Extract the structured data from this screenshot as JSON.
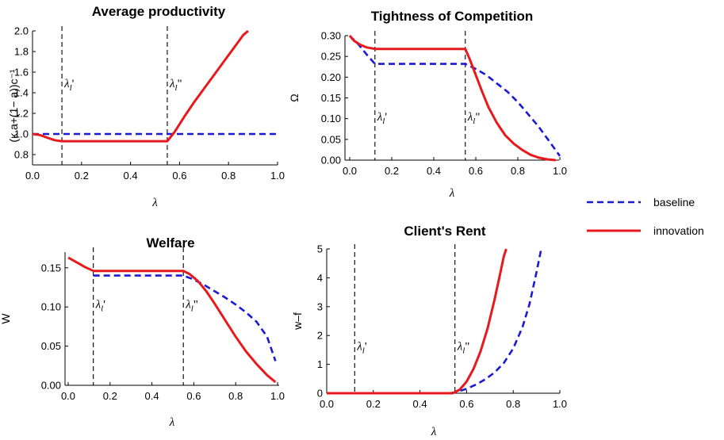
{
  "legend": {
    "position": "right",
    "entries": [
      {
        "label": "baseline",
        "color": "#1a1ad6",
        "dash": true
      },
      {
        "label": "innovation",
        "color": "#e8191c",
        "dash": false
      }
    ]
  },
  "chart_data": [
    {
      "type": "line",
      "title": "Average productivity",
      "xlabel": "λ",
      "ylabel": "(κ a+(1− a))c⁻¹",
      "xlim": [
        0,
        1
      ],
      "ylim": [
        0.7,
        2.0
      ],
      "xticks": [
        "0.0",
        "0.2",
        "0.4",
        "0.6",
        "0.8",
        "1.0"
      ],
      "yticks": [
        "0.8",
        "1.0",
        "1.2",
        "1.4",
        "1.6",
        "1.8",
        "2.0"
      ],
      "vlines": [
        {
          "x": 0.12,
          "label": "λl'"
        },
        {
          "x": 0.55,
          "label": "λl\""
        }
      ],
      "series": [
        {
          "name": "baseline",
          "x": [
            0,
            1
          ],
          "y": [
            1.0,
            1.0
          ]
        },
        {
          "name": "innovation",
          "x": [
            0,
            0.03,
            0.06,
            0.09,
            0.12,
            0.55,
            0.58,
            0.62,
            0.66,
            0.7,
            0.74,
            0.78,
            0.82,
            0.86,
            0.88
          ],
          "y": [
            1.0,
            0.99,
            0.965,
            0.94,
            0.93,
            0.93,
            1.02,
            1.17,
            1.31,
            1.44,
            1.57,
            1.7,
            1.83,
            1.96,
            2.0
          ]
        }
      ]
    },
    {
      "type": "line",
      "title": "Tightness of Competition",
      "xlabel": "λ",
      "ylabel": "Ω",
      "xlim": [
        0,
        1
      ],
      "ylim": [
        0,
        0.3
      ],
      "xticks": [
        "0.0",
        "0.2",
        "0.4",
        "0.6",
        "0.8",
        "1.0"
      ],
      "yticks": [
        "0.00",
        "0.05",
        "0.10",
        "0.15",
        "0.20",
        "0.25",
        "0.30"
      ],
      "vlines": [
        {
          "x": 0.12,
          "label": "λl'"
        },
        {
          "x": 0.55,
          "label": "λl\""
        }
      ],
      "series": [
        {
          "name": "baseline",
          "x": [
            0,
            0.04,
            0.08,
            0.12,
            0.55,
            0.6,
            0.65,
            0.7,
            0.75,
            0.8,
            0.85,
            0.9,
            0.95,
            1.0
          ],
          "y": [
            0.3,
            0.28,
            0.255,
            0.232,
            0.232,
            0.22,
            0.205,
            0.185,
            0.165,
            0.14,
            0.11,
            0.08,
            0.045,
            0.01
          ]
        },
        {
          "name": "innovation",
          "x": [
            0,
            0.02,
            0.05,
            0.08,
            0.12,
            0.55,
            0.57,
            0.6,
            0.63,
            0.66,
            0.7,
            0.74,
            0.78,
            0.82,
            0.86,
            0.9,
            0.94,
            0.98
          ],
          "y": [
            0.3,
            0.288,
            0.278,
            0.272,
            0.268,
            0.268,
            0.245,
            0.205,
            0.165,
            0.128,
            0.09,
            0.06,
            0.04,
            0.025,
            0.013,
            0.006,
            0.002,
            0.0
          ]
        }
      ]
    },
    {
      "type": "line",
      "title": "Welfare",
      "xlabel": "λ",
      "ylabel": "W",
      "xlim": [
        0,
        1
      ],
      "ylim": [
        0,
        0.17
      ],
      "xticks": [
        "0.0",
        "0.2",
        "0.4",
        "0.6",
        "0.8",
        "1.0"
      ],
      "yticks": [
        "0.00",
        "0.05",
        "0.10",
        "0.15"
      ],
      "vlines": [
        {
          "x": 0.12,
          "label": "λl'"
        },
        {
          "x": 0.55,
          "label": "λl\""
        }
      ],
      "series": [
        {
          "name": "baseline",
          "x": [
            0.12,
            0.55,
            0.6,
            0.65,
            0.7,
            0.75,
            0.8,
            0.85,
            0.9,
            0.95,
            0.99
          ],
          "y": [
            0.14,
            0.14,
            0.135,
            0.128,
            0.12,
            0.112,
            0.103,
            0.093,
            0.081,
            0.062,
            0.031
          ]
        },
        {
          "name": "innovation",
          "x": [
            0,
            0.04,
            0.08,
            0.12,
            0.55,
            0.58,
            0.62,
            0.66,
            0.7,
            0.75,
            0.8,
            0.85,
            0.9,
            0.95,
            0.99
          ],
          "y": [
            0.163,
            0.157,
            0.151,
            0.146,
            0.146,
            0.142,
            0.133,
            0.12,
            0.104,
            0.083,
            0.062,
            0.043,
            0.027,
            0.013,
            0.004
          ]
        }
      ]
    },
    {
      "type": "line",
      "title": "Client's Rent",
      "xlabel": "λ",
      "ylabel": "w–f",
      "xlim": [
        0,
        1
      ],
      "ylim": [
        0,
        5
      ],
      "xticks": [
        "0.0",
        "0.2",
        "0.4",
        "0.6",
        "0.8",
        "1.0"
      ],
      "yticks": [
        "0",
        "1",
        "2",
        "3",
        "4",
        "5"
      ],
      "vlines": [
        {
          "x": 0.12,
          "label": "λl'"
        },
        {
          "x": 0.55,
          "label": "λl\""
        }
      ],
      "series": [
        {
          "name": "baseline",
          "x": [
            0,
            0.53,
            0.56,
            0.6,
            0.64,
            0.68,
            0.72,
            0.76,
            0.8,
            0.84,
            0.87,
            0.9,
            0.92
          ],
          "y": [
            0,
            0,
            0.05,
            0.15,
            0.3,
            0.48,
            0.72,
            1.05,
            1.55,
            2.3,
            3.1,
            4.2,
            5.0
          ]
        },
        {
          "name": "innovation",
          "x": [
            0,
            0.54,
            0.57,
            0.6,
            0.63,
            0.66,
            0.69,
            0.72,
            0.74,
            0.76,
            0.77
          ],
          "y": [
            0,
            0,
            0.12,
            0.4,
            0.85,
            1.45,
            2.25,
            3.25,
            4.0,
            4.75,
            5.0
          ]
        }
      ]
    }
  ]
}
